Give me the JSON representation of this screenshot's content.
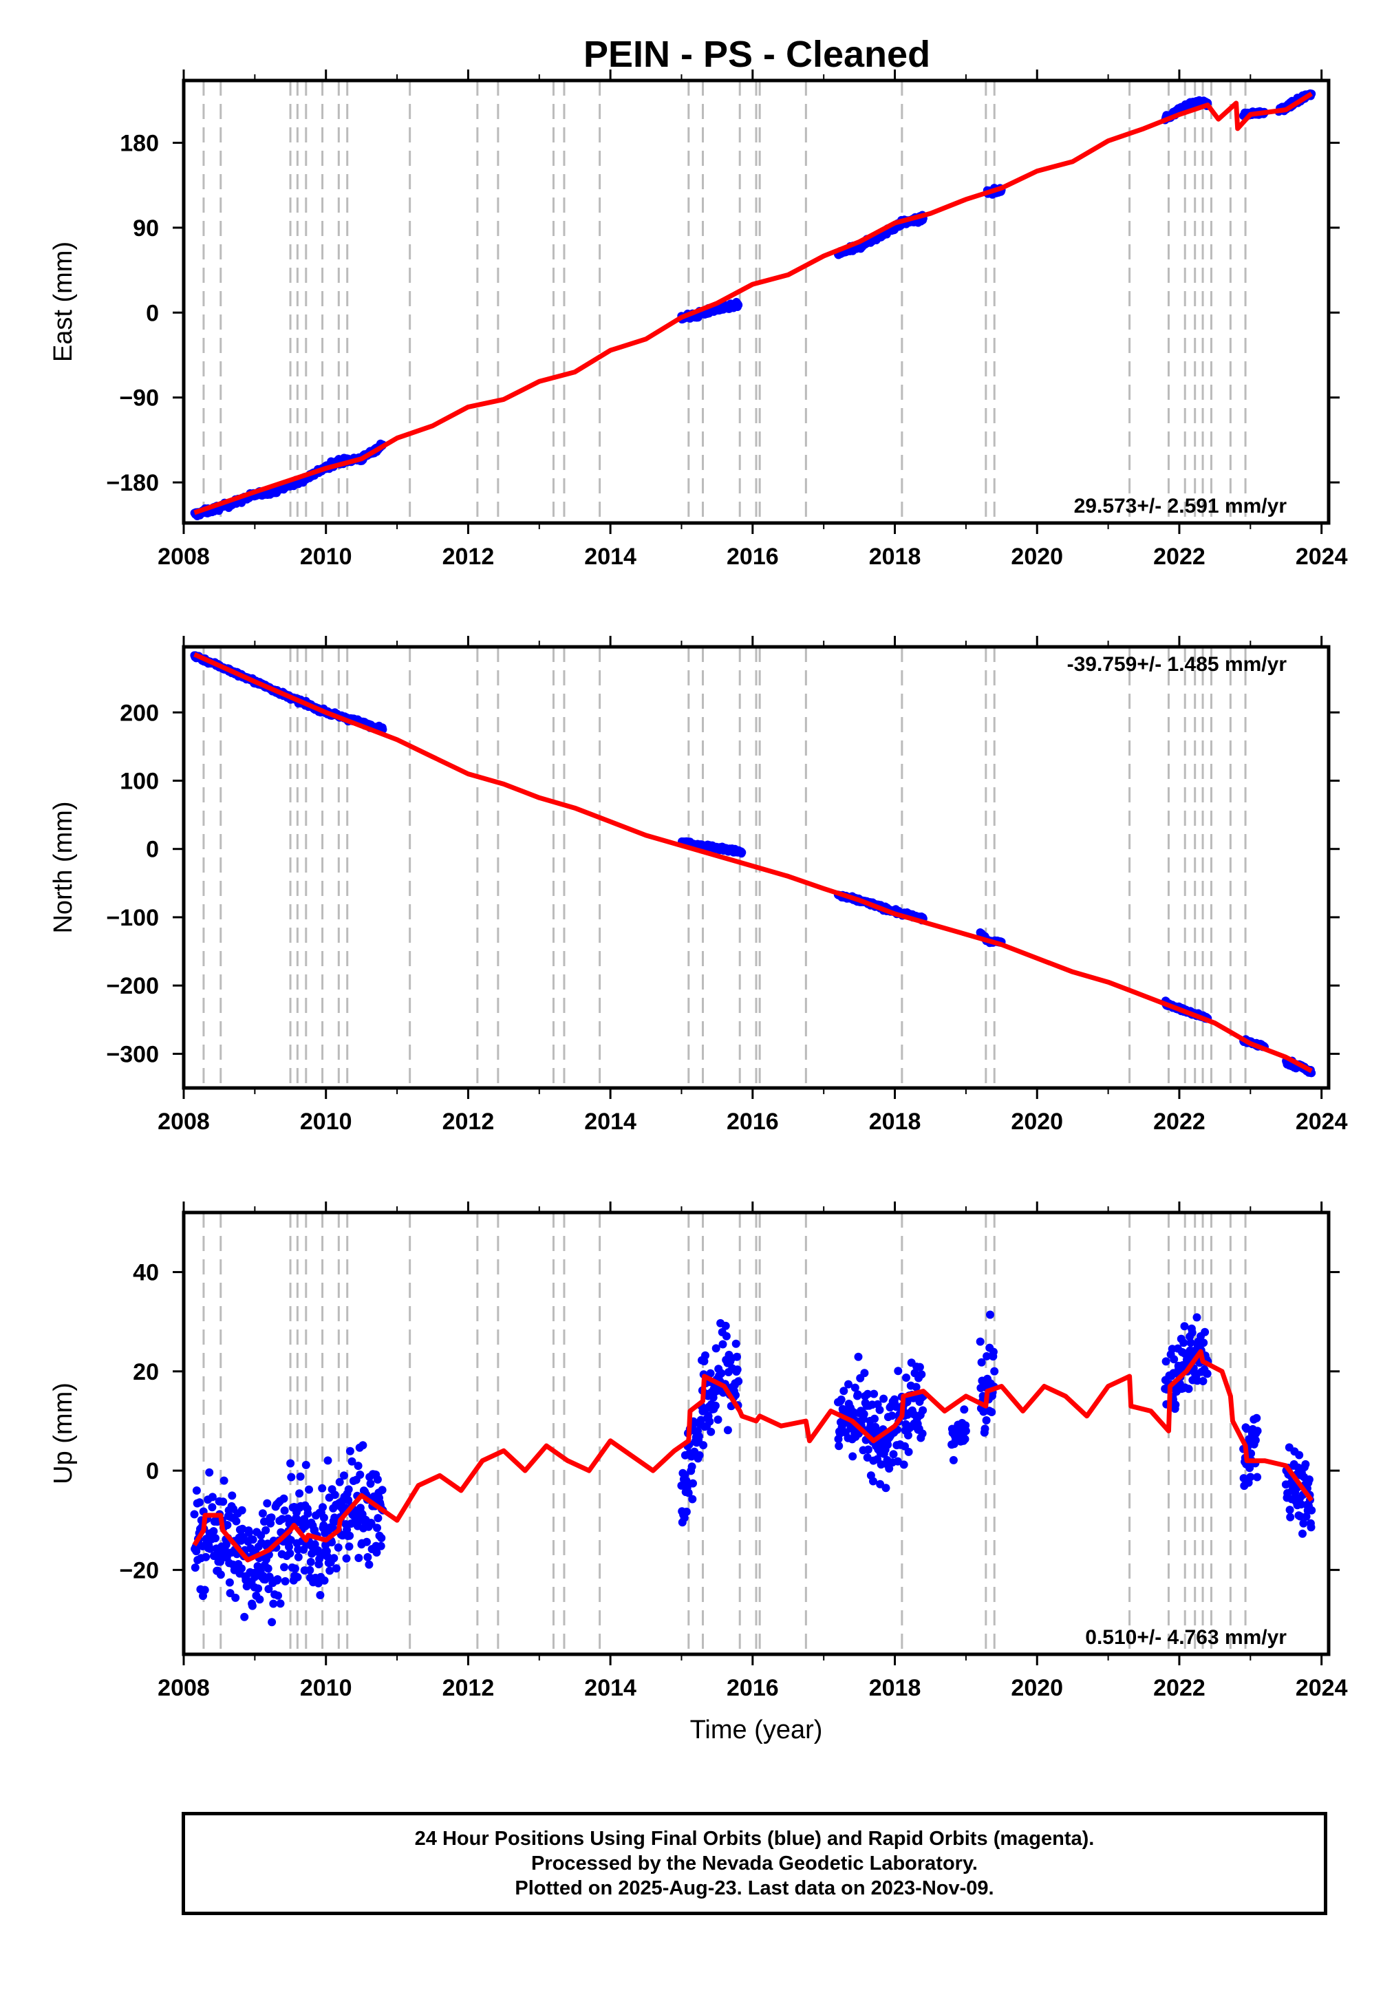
{
  "title": "PEIN  - PS - Cleaned",
  "colors": {
    "data": "#0000ff",
    "model": "#ff0000",
    "steps": "#bbbbbb",
    "frame": "#000000"
  },
  "footer": {
    "line1": "24 Hour Positions Using Final Orbits (blue) and Rapid Orbits (magenta).",
    "line2": "Processed by the Nevada Geodetic Laboratory.",
    "line3": "Plotted on 2025-Aug-23. Last data on 2023-Nov-09."
  },
  "chart_data": [
    {
      "type": "scatter",
      "id": "east",
      "ylabel": "East (mm)",
      "xlabel": "",
      "rate_label": "29.573+/- 2.591 mm/yr",
      "xlim": [
        2008.0,
        2024.1
      ],
      "ylim": [
        -223,
        246
      ],
      "xticks": [
        2008,
        2010,
        2012,
        2014,
        2016,
        2018,
        2020,
        2022,
        2024
      ],
      "yticks": [
        -180,
        -90,
        0,
        90,
        180
      ],
      "ytick_labels": [
        "−180",
        "−90",
        "0",
        "90",
        "180"
      ],
      "step_dates": [
        2008.28,
        2008.52,
        2009.5,
        2009.6,
        2009.72,
        2009.95,
        2010.18,
        2010.3,
        2011.18,
        2012.13,
        2012.42,
        2013.2,
        2013.35,
        2013.85,
        2015.1,
        2015.3,
        2015.82,
        2016.05,
        2016.1,
        2016.75,
        2018.1,
        2019.28,
        2019.4,
        2021.3,
        2021.85,
        2022.08,
        2022.22,
        2022.33,
        2022.45,
        2022.72,
        2022.93
      ],
      "model": {
        "x": [
          2008.15,
          2009.0,
          2010.0,
          2010.5,
          2011.0,
          2011.5,
          2012.0,
          2012.5,
          2013.0,
          2013.5,
          2014.0,
          2014.5,
          2015.0,
          2015.5,
          2016.0,
          2016.5,
          2017.0,
          2017.5,
          2018.0,
          2018.5,
          2019.0,
          2019.5,
          2020.0,
          2020.5,
          2021.0,
          2021.5,
          2022.0,
          2022.4,
          2022.55,
          2022.8,
          2022.82,
          2023.0,
          2023.5,
          2023.86
        ],
        "y": [
          -212,
          -190,
          -165,
          -155,
          -133,
          -120,
          -100,
          -92,
          -73,
          -63,
          -40,
          -28,
          -5,
          10,
          30,
          40,
          60,
          75,
          95,
          105,
          120,
          132,
          150,
          160,
          182,
          195,
          210,
          220,
          205,
          222,
          195,
          210,
          215,
          232
        ]
      },
      "series": [
        {
          "x": [
            2008.15,
            2008.4,
            2008.7,
            2009.0,
            2009.3,
            2009.6,
            2009.9,
            2010.2,
            2010.5,
            2010.8
          ],
          "y": [
            -214,
            -209,
            -202,
            -193,
            -188,
            -180,
            -168,
            -157,
            -155,
            -140
          ],
          "spread": 3
        },
        {
          "x": [
            2015.0,
            2015.2,
            2015.4,
            2015.6,
            2015.8
          ],
          "y": [
            -5,
            -3,
            2,
            5,
            8
          ],
          "spread": 3
        },
        {
          "x": [
            2017.2,
            2017.5,
            2017.8,
            2018.1,
            2018.4
          ],
          "y": [
            62,
            70,
            82,
            95,
            100
          ],
          "spread": 3
        },
        {
          "x": [
            2019.3,
            2019.5
          ],
          "y": [
            127,
            130
          ],
          "spread": 3
        },
        {
          "x": [
            2021.8,
            2022.0,
            2022.2,
            2022.4
          ],
          "y": [
            205,
            215,
            222,
            222
          ],
          "spread": 3
        },
        {
          "x": [
            2022.9,
            2023.2
          ],
          "y": [
            210,
            212
          ],
          "spread": 2
        },
        {
          "x": [
            2023.4,
            2023.6,
            2023.86
          ],
          "y": [
            215,
            222,
            232
          ],
          "spread": 4
        }
      ]
    },
    {
      "type": "scatter",
      "id": "north",
      "ylabel": "North (mm)",
      "xlabel": "",
      "rate_label": "-39.759+/- 1.485 mm/yr",
      "xlim": [
        2008.0,
        2024.1
      ],
      "ylim": [
        -350,
        296
      ],
      "xticks": [
        2008,
        2010,
        2012,
        2014,
        2016,
        2018,
        2020,
        2022,
        2024
      ],
      "yticks": [
        -300,
        -200,
        -100,
        0,
        100,
        200
      ],
      "ytick_labels": [
        "−300",
        "−200",
        "−100",
        "0",
        "100",
        "200"
      ],
      "step_dates": [
        2008.28,
        2008.52,
        2009.5,
        2009.6,
        2009.72,
        2009.95,
        2010.18,
        2010.3,
        2011.18,
        2012.13,
        2012.42,
        2013.2,
        2013.35,
        2013.85,
        2015.1,
        2015.3,
        2015.82,
        2016.05,
        2016.1,
        2016.75,
        2018.1,
        2019.28,
        2019.4,
        2021.3,
        2021.85,
        2022.08,
        2022.22,
        2022.33,
        2022.45,
        2022.72,
        2022.93
      ],
      "model": {
        "x": [
          2008.15,
          2009.0,
          2010.0,
          2011.0,
          2011.5,
          2012.0,
          2012.5,
          2013.0,
          2013.5,
          2014.0,
          2014.5,
          2015.0,
          2015.5,
          2016.0,
          2016.5,
          2017.0,
          2017.5,
          2018.0,
          2018.5,
          2019.0,
          2019.5,
          2020.0,
          2020.5,
          2021.0,
          2021.5,
          2022.0,
          2022.5,
          2023.0,
          2023.5,
          2023.86
        ],
        "y": [
          285,
          245,
          200,
          160,
          135,
          110,
          95,
          75,
          60,
          40,
          20,
          5,
          -10,
          -25,
          -40,
          -58,
          -75,
          -95,
          -110,
          -125,
          -140,
          -160,
          -180,
          -195,
          -215,
          -235,
          -255,
          -285,
          -305,
          -325
        ]
      },
      "series": [
        {
          "x": [
            2008.15,
            2008.5,
            2009.0,
            2009.5,
            2010.0,
            2010.5,
            2010.8
          ],
          "y": [
            283,
            268,
            245,
            222,
            200,
            185,
            175
          ],
          "spread": 3
        },
        {
          "x": [
            2015.0,
            2015.3,
            2015.6,
            2015.85
          ],
          "y": [
            10,
            5,
            0,
            -5
          ],
          "spread": 3
        },
        {
          "x": [
            2017.2,
            2017.6,
            2018.0,
            2018.4
          ],
          "y": [
            -68,
            -78,
            -92,
            -102
          ],
          "spread": 3
        },
        {
          "x": [
            2019.2,
            2019.3,
            2019.5
          ],
          "y": [
            -122,
            -135,
            -136
          ],
          "spread": 2
        },
        {
          "x": [
            2021.8,
            2022.1,
            2022.4
          ],
          "y": [
            -225,
            -238,
            -248
          ],
          "spread": 3
        },
        {
          "x": [
            2022.9,
            2023.2
          ],
          "y": [
            -280,
            -290
          ],
          "spread": 3
        },
        {
          "x": [
            2023.5,
            2023.7,
            2023.86
          ],
          "y": [
            -312,
            -318,
            -328
          ],
          "spread": 4
        }
      ]
    },
    {
      "type": "scatter",
      "id": "up",
      "ylabel": "Up (mm)",
      "xlabel": "Time (year)",
      "rate_label": "0.510+/- 4.763 mm/yr",
      "xlim": [
        2008.0,
        2024.1
      ],
      "ylim": [
        -37,
        52
      ],
      "xticks": [
        2008,
        2010,
        2012,
        2014,
        2016,
        2018,
        2020,
        2022,
        2024
      ],
      "yticks": [
        -20,
        0,
        20,
        40
      ],
      "ytick_labels": [
        "−20",
        "0",
        "20",
        "40"
      ],
      "step_dates": [
        2008.28,
        2008.52,
        2009.5,
        2009.6,
        2009.72,
        2009.95,
        2010.18,
        2010.3,
        2011.18,
        2012.13,
        2012.42,
        2013.2,
        2013.35,
        2013.85,
        2015.1,
        2015.3,
        2015.82,
        2016.05,
        2016.1,
        2016.75,
        2018.1,
        2019.28,
        2019.4,
        2021.3,
        2021.85,
        2022.08,
        2022.22,
        2022.33,
        2022.45,
        2022.72,
        2022.93
      ],
      "model": {
        "x": [
          2008.15,
          2008.28,
          2008.3,
          2008.52,
          2008.55,
          2008.9,
          2009.2,
          2009.5,
          2009.55,
          2009.72,
          2009.75,
          2010.0,
          2010.18,
          2010.2,
          2010.5,
          2010.8,
          2011.0,
          2011.3,
          2011.6,
          2011.9,
          2012.2,
          2012.5,
          2012.8,
          2013.1,
          2013.4,
          2013.7,
          2014.0,
          2014.3,
          2014.6,
          2014.9,
          2015.1,
          2015.12,
          2015.3,
          2015.32,
          2015.6,
          2015.82,
          2015.85,
          2016.05,
          2016.1,
          2016.4,
          2016.75,
          2016.8,
          2017.1,
          2017.4,
          2017.7,
          2018.0,
          2018.1,
          2018.12,
          2018.4,
          2018.7,
          2019.0,
          2019.28,
          2019.3,
          2019.5,
          2019.8,
          2020.1,
          2020.4,
          2020.7,
          2021.0,
          2021.3,
          2021.32,
          2021.6,
          2021.85,
          2021.87,
          2022.1,
          2022.3,
          2022.33,
          2022.6,
          2022.72,
          2022.75,
          2022.93,
          2022.95,
          2023.2,
          2023.5,
          2023.86
        ],
        "y": [
          -15,
          -12,
          -9,
          -9,
          -12,
          -18,
          -16,
          -12,
          -11,
          -14,
          -13,
          -14,
          -12,
          -10,
          -5,
          -8,
          -10,
          -3,
          -1,
          -4,
          2,
          4,
          0,
          5,
          2,
          0,
          6,
          3,
          0,
          4,
          6,
          12,
          14,
          19,
          17,
          12,
          11,
          10,
          11,
          9,
          10,
          6,
          12,
          10,
          6,
          9,
          11,
          15,
          16,
          12,
          15,
          13,
          16,
          17,
          12,
          17,
          15,
          11,
          17,
          19,
          13,
          12,
          8,
          17,
          20,
          24,
          22,
          20,
          15,
          10,
          5,
          2,
          2,
          1,
          -6
        ]
      },
      "series": [
        {
          "x": [
            2008.15,
            2008.5,
            2008.9,
            2009.3,
            2009.6,
            2010.0,
            2010.4,
            2010.8
          ],
          "y": [
            -14,
            -12,
            -18,
            -16,
            -12,
            -14,
            -6,
            -8
          ],
          "spread": 11
        },
        {
          "x": [
            2015.0,
            2015.3,
            2015.6,
            2015.8
          ],
          "y": [
            -5,
            12,
            20,
            18
          ],
          "spread": 10
        },
        {
          "x": [
            2017.2,
            2017.5,
            2017.8,
            2018.1,
            2018.4
          ],
          "y": [
            10,
            12,
            5,
            10,
            15
          ],
          "spread": 9
        },
        {
          "x": [
            2018.8,
            2019.0
          ],
          "y": [
            6,
            8
          ],
          "spread": 4
        },
        {
          "x": [
            2019.2,
            2019.4
          ],
          "y": [
            14,
            20
          ],
          "spread": 9
        },
        {
          "x": [
            2021.8,
            2022.0,
            2022.2,
            2022.4
          ],
          "y": [
            16,
            20,
            24,
            22
          ],
          "spread": 7
        },
        {
          "x": [
            2022.9,
            2023.1
          ],
          "y": [
            3,
            8
          ],
          "spread": 8
        },
        {
          "x": [
            2023.5,
            2023.7,
            2023.86
          ],
          "y": [
            0,
            -4,
            -8
          ],
          "spread": 7
        }
      ]
    }
  ]
}
